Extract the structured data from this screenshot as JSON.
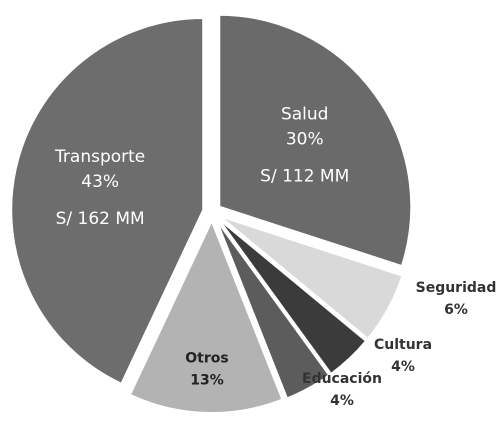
{
  "chart_data": {
    "type": "pie",
    "categories": [
      "Salud",
      "Seguridad",
      "Cultura",
      "Educación",
      "Otros",
      "Transporte"
    ],
    "values": [
      30,
      6,
      4,
      4,
      13,
      43
    ],
    "value_labels": [
      "30%",
      "6%",
      "4%",
      "4%",
      "13%",
      "43%"
    ],
    "amount_labels": [
      "S/ 112 MM",
      null,
      null,
      null,
      null,
      "S/ 162 MM"
    ],
    "colors": [
      "#6a6a6a",
      "#d9d9d9",
      "#3b3b3b",
      "#5c5c5c",
      "#b3b3b3",
      "#6d6d6d"
    ]
  }
}
